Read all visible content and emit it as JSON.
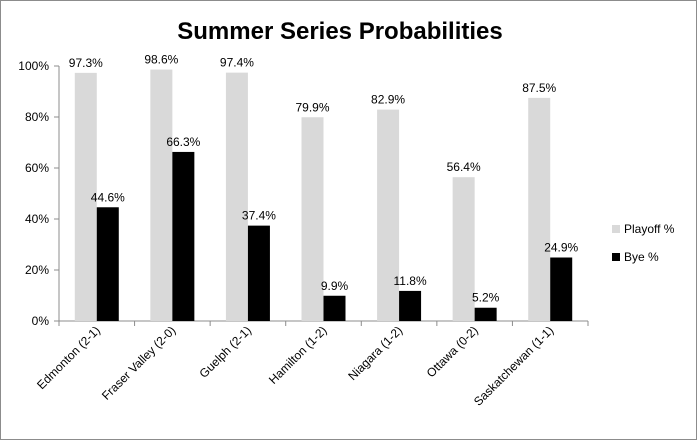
{
  "chart_data": {
    "type": "bar",
    "title": "Summer Series Probabilities",
    "xlabel": "",
    "ylabel": "",
    "categories": [
      "Edmonton (2-1)",
      "Fraser Valley (2-0)",
      "Guelph (2-1)",
      "Hamilton (1-2)",
      "Niagara (1-2)",
      "Ottawa (0-2)",
      "Saskatchewan (1-1)"
    ],
    "series": [
      {
        "name": "Playoff %",
        "values": [
          97.3,
          98.6,
          97.4,
          79.9,
          82.9,
          56.4,
          87.5
        ],
        "labels": [
          "97.3%",
          "98.6%",
          "97.4%",
          "79.9%",
          "82.9%",
          "56.4%",
          "87.5%"
        ],
        "color": "#d9d9d9"
      },
      {
        "name": "Bye %",
        "values": [
          44.6,
          66.3,
          37.4,
          9.9,
          11.8,
          5.2,
          24.9
        ],
        "labels": [
          "44.6%",
          "66.3%",
          "37.4%",
          "9.9%",
          "11.8%",
          "5.2%",
          "24.9%"
        ],
        "color": "#000000"
      }
    ],
    "ylim": [
      0,
      100
    ],
    "yticks": [
      0,
      20,
      40,
      60,
      80,
      100
    ],
    "ytick_labels": [
      "0%",
      "20%",
      "40%",
      "60%",
      "80%",
      "100%"
    ],
    "grid": false,
    "legend_position": "right"
  }
}
